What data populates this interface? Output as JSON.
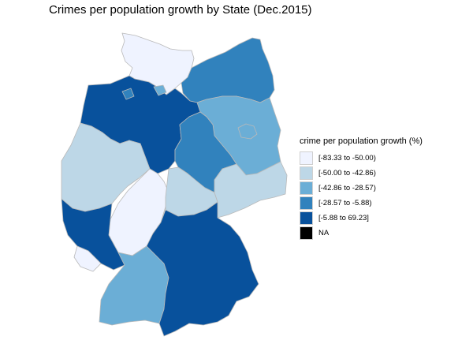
{
  "title": "Crimes per population growth by State (Dec.2015)",
  "legend": {
    "title": "crime per population growth (%)",
    "items": [
      {
        "label": "[-83.33 to -50.00)",
        "color": "#eff3ff"
      },
      {
        "label": "[-50.00 to -42.86)",
        "color": "#bdd7e7"
      },
      {
        "label": "[-42.86 to -28.57)",
        "color": "#6baed6"
      },
      {
        "label": "[-28.57 to -5.88)",
        "color": "#3182bd"
      },
      {
        "label": "[-5.88 to 69.23]",
        "color": "#08519c"
      },
      {
        "label": "NA",
        "color": "#000000"
      }
    ]
  },
  "states": [
    {
      "id": "schleswig-holstein",
      "class": 0
    },
    {
      "id": "hamburg",
      "class": 2
    },
    {
      "id": "mecklenburg-vorpommern",
      "class": 3
    },
    {
      "id": "niedersachsen",
      "class": 4
    },
    {
      "id": "bremen",
      "class": 3
    },
    {
      "id": "brandenburg",
      "class": 2
    },
    {
      "id": "berlin",
      "class": 2
    },
    {
      "id": "sachsen-anhalt",
      "class": 3
    },
    {
      "id": "nordrhein-westfalen",
      "class": 1
    },
    {
      "id": "hessen",
      "class": 0
    },
    {
      "id": "thueringen",
      "class": 1
    },
    {
      "id": "sachsen",
      "class": 1
    },
    {
      "id": "rheinland-pfalz",
      "class": 4
    },
    {
      "id": "saarland",
      "class": 0
    },
    {
      "id": "baden-wuerttemberg",
      "class": 2
    },
    {
      "id": "bayern",
      "class": 4
    }
  ]
}
